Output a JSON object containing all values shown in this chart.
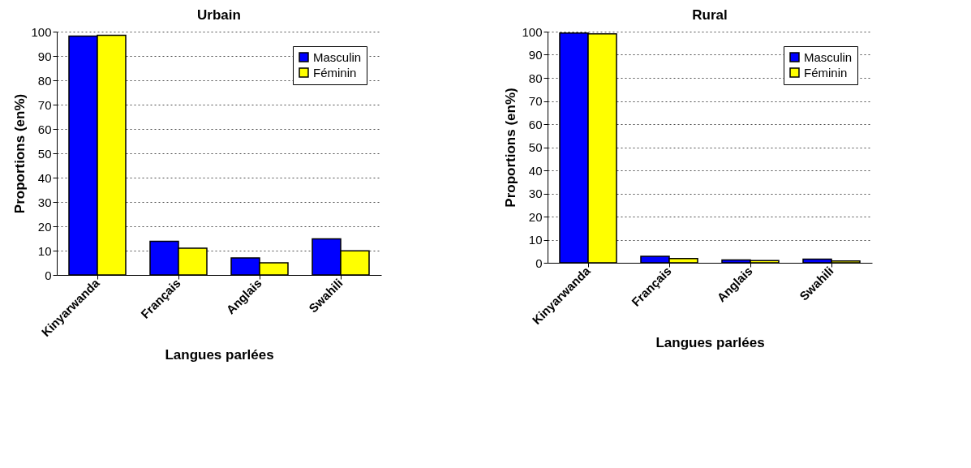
{
  "chart_data": [
    {
      "type": "bar",
      "title": "Urbain",
      "xlabel": "Langues parlées",
      "ylabel": "Proportions (en%)",
      "categories": [
        "Kinyarwanda",
        "Français",
        "Anglais",
        "Swahili"
      ],
      "series": [
        {
          "name": "Masculin",
          "color": "#0000ff",
          "values": [
            98.2,
            13.8,
            7,
            14.8
          ]
        },
        {
          "name": "Féminin",
          "color": "#ffff00",
          "values": [
            98.5,
            11,
            5,
            9.9
          ]
        }
      ],
      "ylim": [
        0,
        100
      ],
      "yticks": [
        0,
        10,
        20,
        30,
        40,
        50,
        60,
        70,
        80,
        90,
        100
      ],
      "grid": "y",
      "legend": "top right"
    },
    {
      "type": "bar",
      "title": "Rural",
      "xlabel": "Langues parlées",
      "ylabel": "Proportions (en%)",
      "categories": [
        "Kinyarwanda",
        "Français",
        "Anglais",
        "Swahili"
      ],
      "series": [
        {
          "name": "Masculin",
          "color": "#0000ff",
          "values": [
            99.4,
            2.8,
            1.2,
            1.6
          ]
        },
        {
          "name": "Féminin",
          "color": "#ffff00",
          "values": [
            99,
            1.8,
            1,
            0.8
          ]
        }
      ],
      "ylim": [
        0,
        100
      ],
      "yticks": [
        0,
        10,
        20,
        30,
        40,
        50,
        60,
        70,
        80,
        90,
        100
      ],
      "grid": "y",
      "legend": "top right"
    }
  ]
}
